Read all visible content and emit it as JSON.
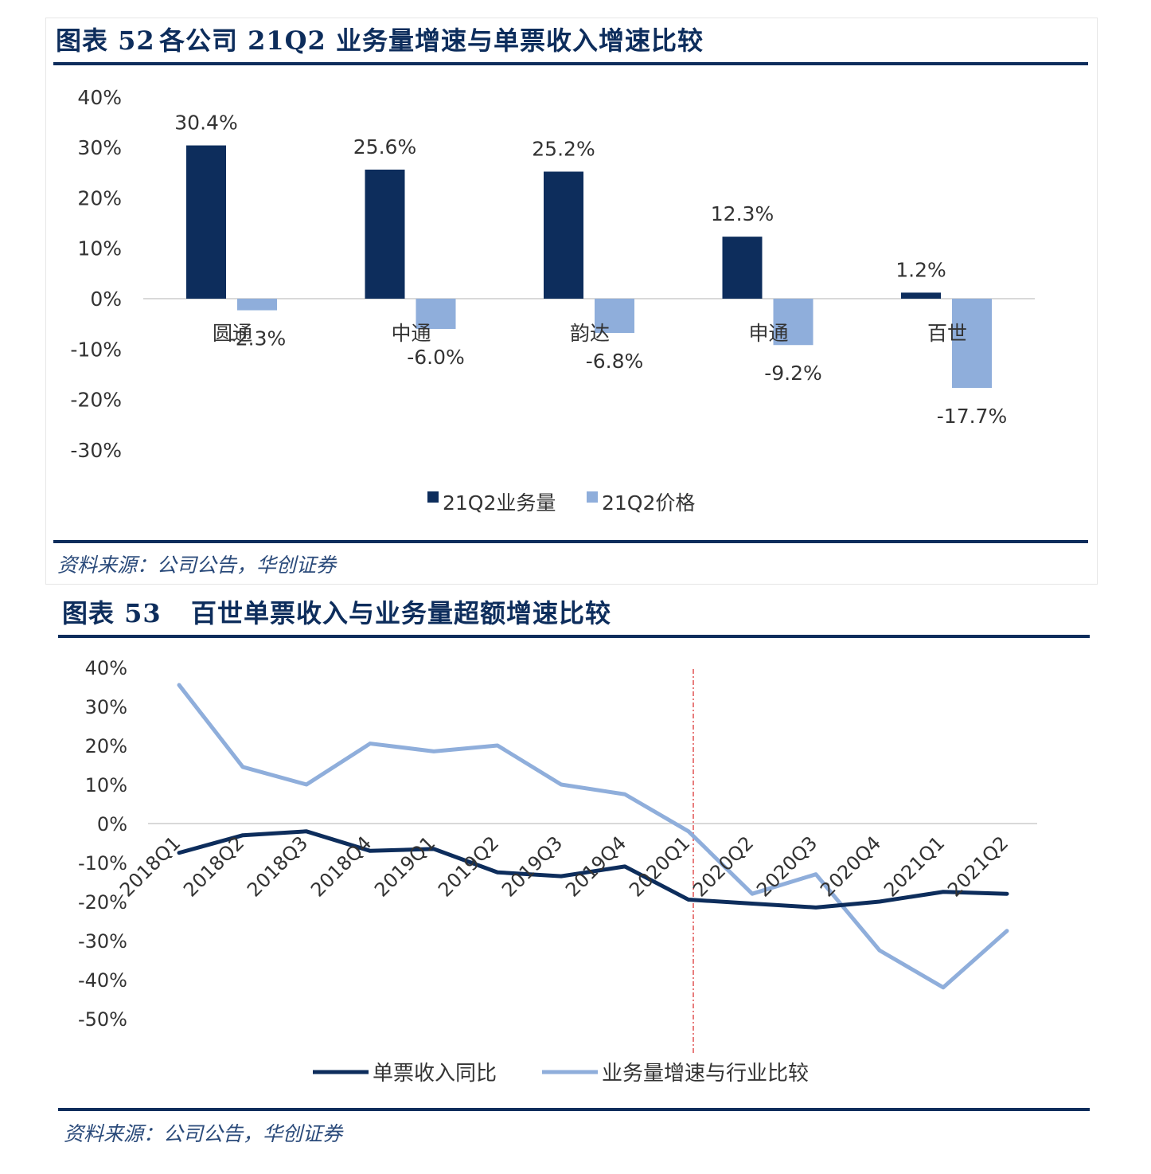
{
  "figure52": {
    "title_no": "图表 52",
    "title_text": "各公司 21Q2 业务量增速与单票收入增速比较",
    "source": "资料来源：公司公告，华创证券"
  },
  "figure53": {
    "title_no": "图表 53",
    "title_text": "百世单票收入与业务量超额增速比较",
    "source": "资料来源：公司公告，华创证券"
  },
  "chart_data": [
    {
      "type": "bar",
      "categories": [
        "圆通",
        "中通",
        "韵达",
        "申通",
        "百世"
      ],
      "series": [
        {
          "name": "21Q2业务量",
          "values": [
            30.4,
            25.6,
            25.2,
            12.3,
            1.2
          ],
          "color": "#0d2d5c"
        },
        {
          "name": "21Q2价格",
          "values": [
            -2.3,
            -6.0,
            -6.8,
            -9.2,
            -17.7
          ],
          "color": "#8faedb"
        }
      ],
      "data_labels": [
        [
          "30.4%",
          "25.6%",
          "25.2%",
          "12.3%",
          "1.2%"
        ],
        [
          "-2.3%",
          "-6.0%",
          "-6.8%",
          "-9.2%",
          "-17.7%"
        ]
      ],
      "yticks": [
        40,
        30,
        20,
        10,
        0,
        -10,
        -20,
        -30
      ],
      "ytick_labels": [
        "40%",
        "30%",
        "20%",
        "10%",
        "0%",
        "-10%",
        "-20%",
        "-30%"
      ],
      "ylim": [
        -30,
        40
      ],
      "legend_position": "bottom",
      "grid": false
    },
    {
      "type": "line",
      "categories": [
        "2018Q1",
        "2018Q2",
        "2018Q3",
        "2018Q4",
        "2019Q1",
        "2019Q2",
        "2019Q3",
        "2019Q4",
        "2020Q1",
        "2020Q2",
        "2020Q3",
        "2020Q4",
        "2021Q1",
        "2021Q2"
      ],
      "series": [
        {
          "name": "单票收入同比",
          "color": "#0d2d5c",
          "values": [
            -7.5,
            -3,
            -2,
            -7,
            -6.5,
            -12.5,
            -13.5,
            -11,
            -19.5,
            -20.5,
            -21.5,
            -20,
            -17.5,
            -18
          ]
        },
        {
          "name": "业务量增速与行业比较",
          "color": "#8faedb",
          "values": [
            35.5,
            14.5,
            10,
            20.5,
            18.5,
            20,
            10,
            7.5,
            -2,
            -18,
            -13,
            -32.5,
            -42,
            -27.5
          ]
        }
      ],
      "yticks": [
        40,
        30,
        20,
        10,
        0,
        -10,
        -20,
        -30,
        -40,
        -50
      ],
      "ytick_labels": [
        "40%",
        "30%",
        "20%",
        "10%",
        "0%",
        "-10%",
        "-20%",
        "-30%",
        "-40%",
        "-50%"
      ],
      "ylim": [
        -50,
        40
      ],
      "vertical_marker_at": "2020Q1",
      "legend_position": "bottom",
      "grid": false
    }
  ]
}
